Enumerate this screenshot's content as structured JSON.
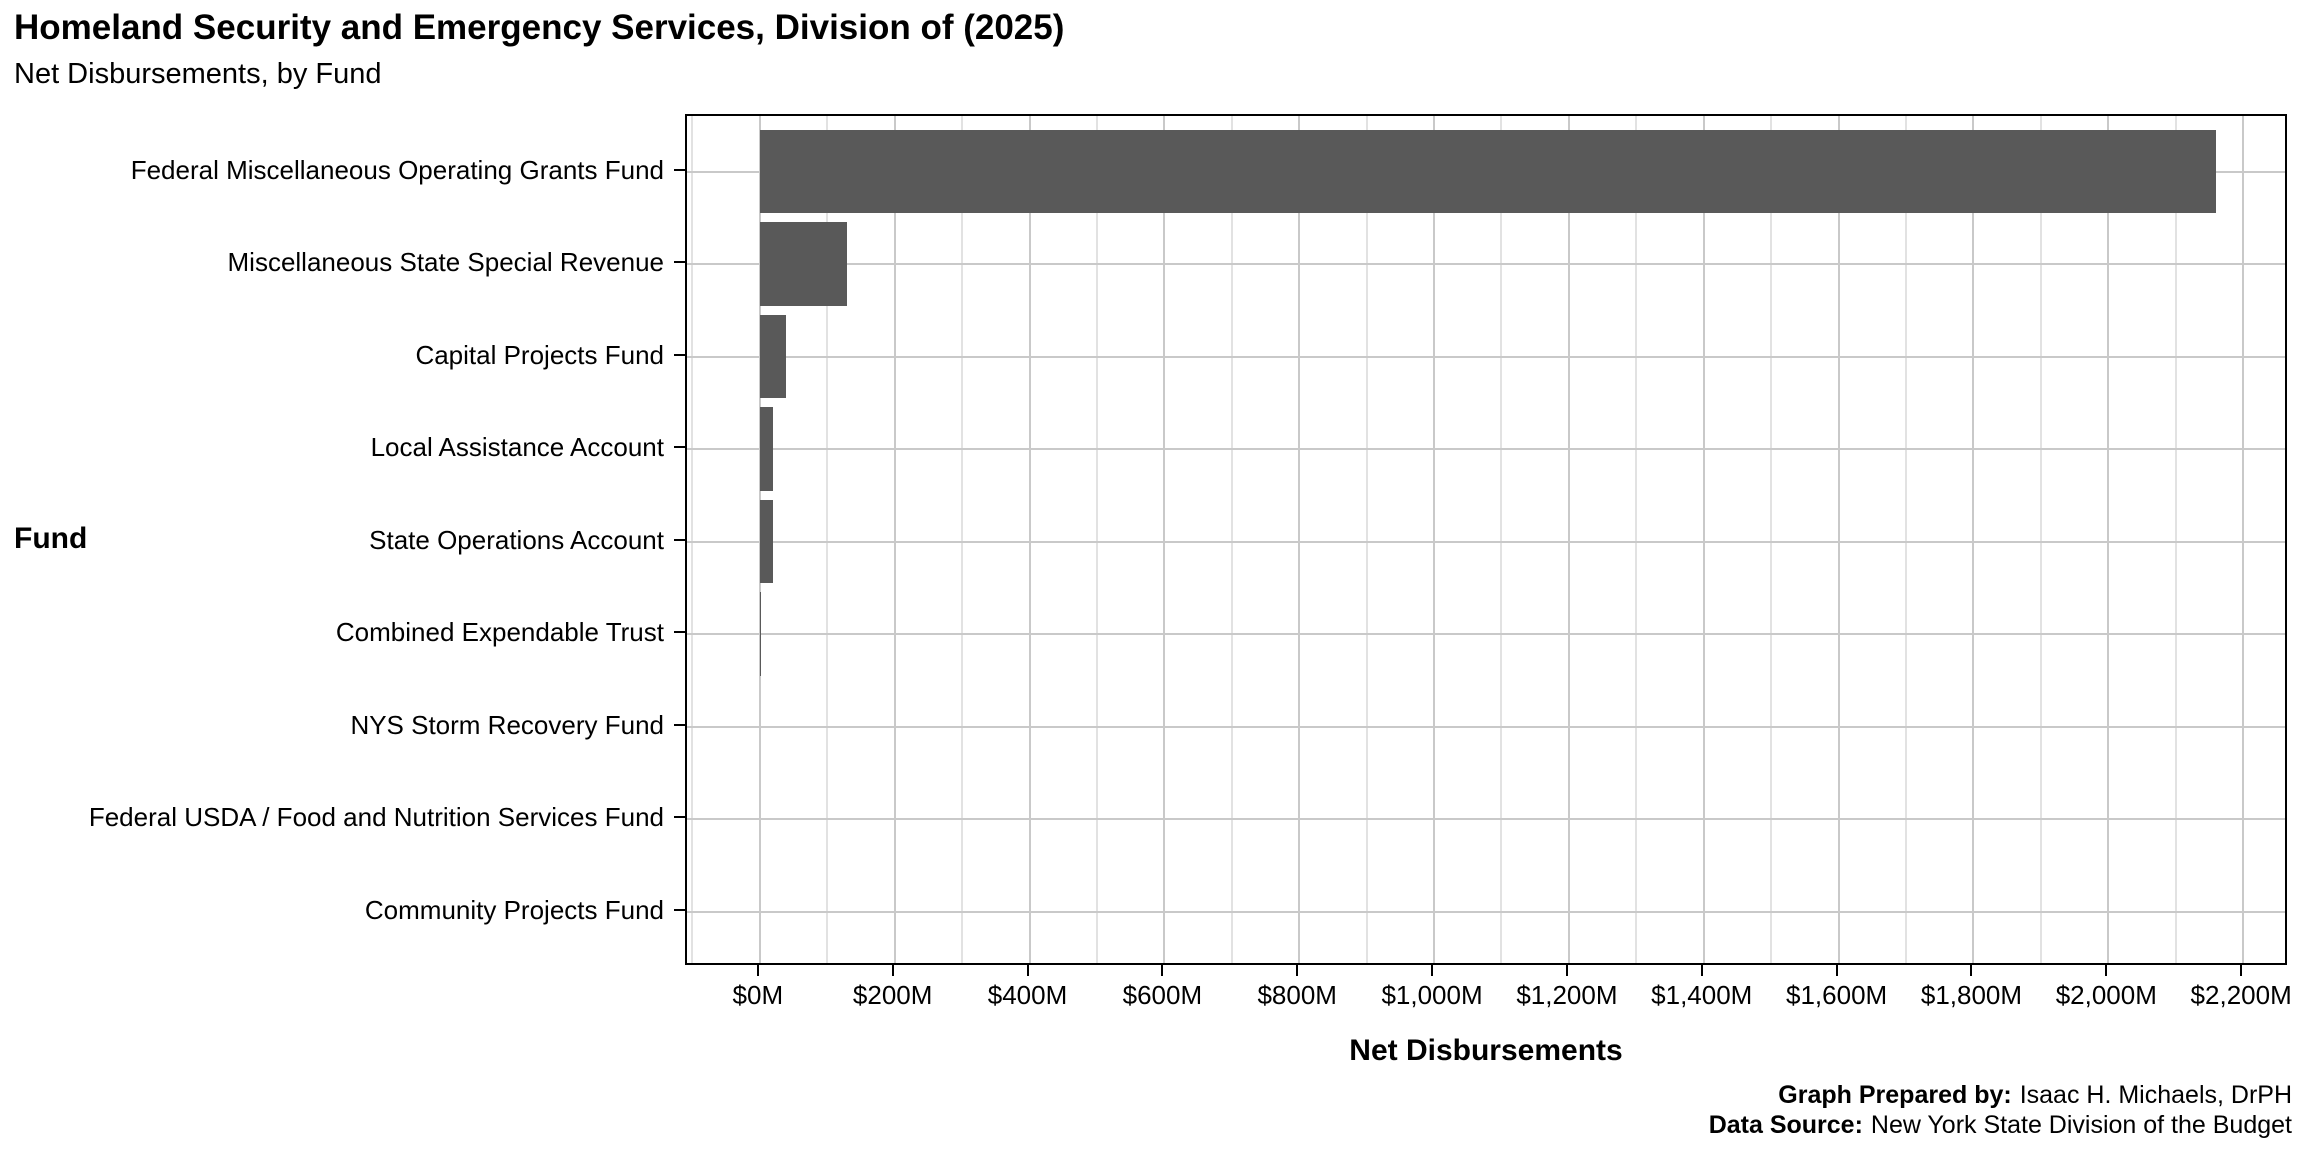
{
  "chart_data": {
    "type": "bar",
    "orientation": "horizontal",
    "title": "Homeland Security and Emergency Services, Division of (2025)",
    "subtitle": "Net Disbursements, by Fund",
    "xlabel": "Net Disbursements",
    "ylabel": "Fund",
    "categories": [
      "Federal Miscellaneous Operating Grants Fund",
      "Miscellaneous State Special Revenue",
      "Capital Projects Fund",
      "Local Assistance Account",
      "State Operations Account",
      "Combined Expendable Trust",
      "NYS Storm Recovery Fund",
      "Federal USDA / Food and Nutrition Services Fund",
      "Community Projects Fund"
    ],
    "values": [
      2160,
      130,
      39,
      20,
      20,
      2,
      0,
      0,
      0
    ],
    "unit": "USD millions",
    "x_ticks": [
      {
        "value": 0,
        "label": "$0M"
      },
      {
        "value": 200,
        "label": "$200M"
      },
      {
        "value": 400,
        "label": "$400M"
      },
      {
        "value": 600,
        "label": "$600M"
      },
      {
        "value": 800,
        "label": "$800M"
      },
      {
        "value": 1000,
        "label": "$1,000M"
      },
      {
        "value": 1200,
        "label": "$1,200M"
      },
      {
        "value": 1400,
        "label": "$1,400M"
      },
      {
        "value": 1600,
        "label": "$1,600M"
      },
      {
        "value": 1800,
        "label": "$1,800M"
      },
      {
        "value": 2000,
        "label": "$2,000M"
      },
      {
        "value": 2200,
        "label": "$2,200M"
      }
    ],
    "xlim": [
      0,
      2200
    ],
    "x_domain_expanded": [
      -108,
      2268
    ],
    "x_minor_grid_step": 100,
    "grid": "vertical major every 200M, vertical minor every 100M, horizontal major at category centers",
    "legend": "none",
    "bar_color": "#595959",
    "bar_rel_height": 0.9,
    "y_expand": 0.6
  },
  "footer": {
    "prepared_by_label": "Graph Prepared by:",
    "prepared_by": "Isaac H. Michaels, DrPH",
    "source_label": "Data Source:",
    "source": "New York State Division of the Budget"
  }
}
